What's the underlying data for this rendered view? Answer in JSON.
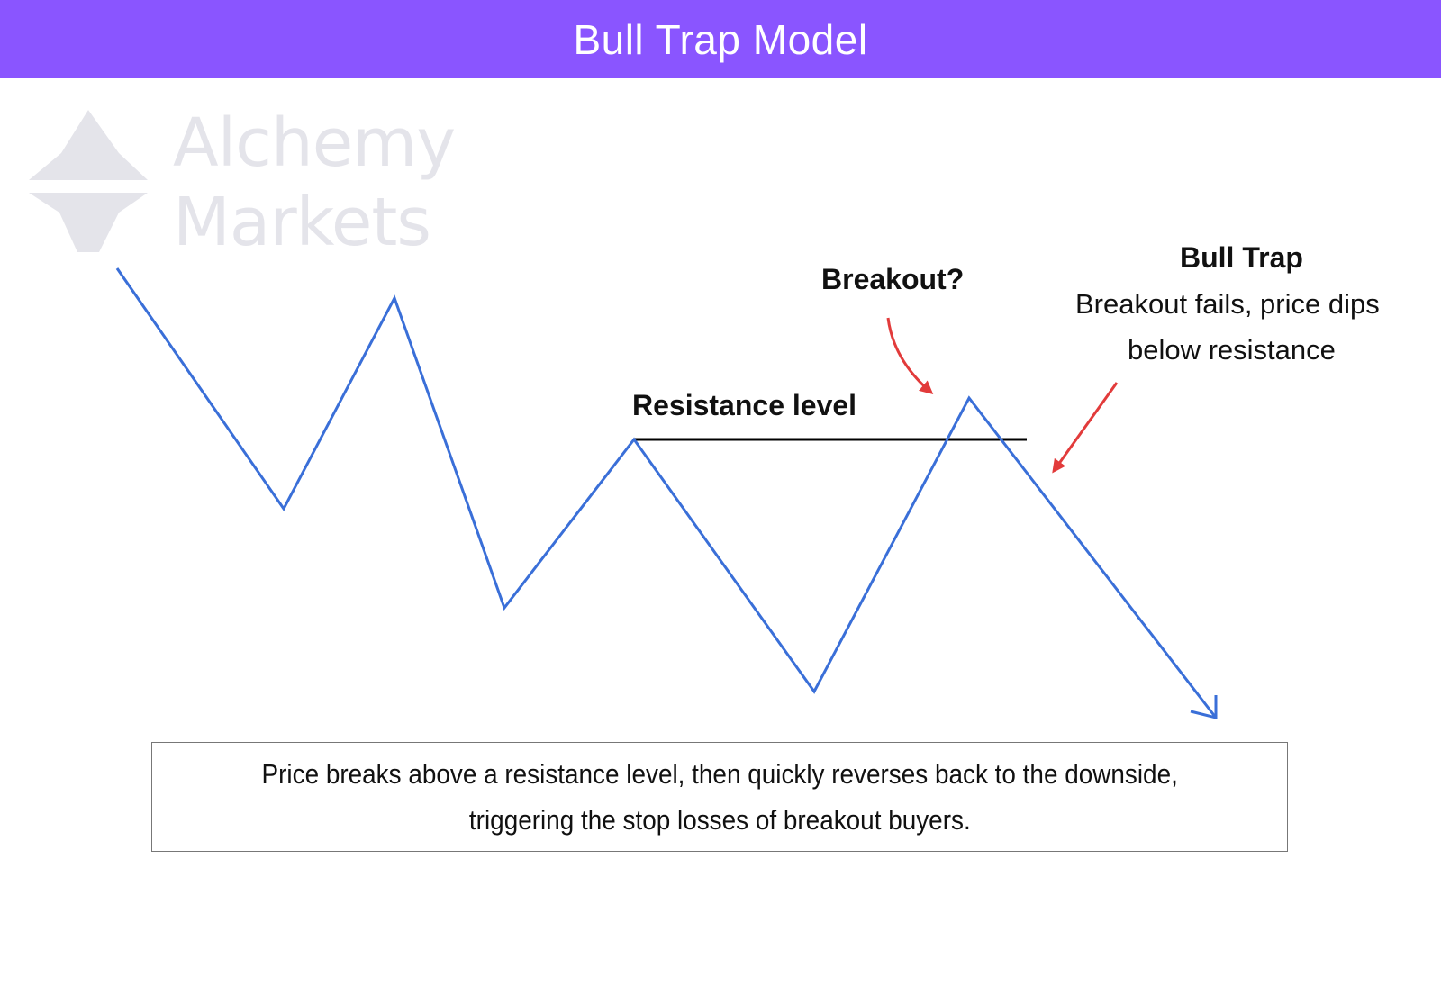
{
  "title": "Bull Trap Model",
  "watermark": {
    "line1": "Alchemy",
    "line2": "Markets"
  },
  "labels": {
    "resistance": "Resistance level",
    "breakout": "Breakout?",
    "bull_trap_title": "Bull Trap",
    "bull_trap_line1": "Breakout fails, price dips",
    "bull_trap_line2": "below resistance"
  },
  "caption": {
    "line1": "Price breaks above a resistance level, then quickly reverses back to the downside,",
    "line2": "triggering the stop losses of breakout buyers."
  },
  "colors": {
    "header": "#8a55ff",
    "price_line": "#3a6fd8",
    "arrow": "#e23b3b",
    "resistance_line": "#000000"
  }
}
